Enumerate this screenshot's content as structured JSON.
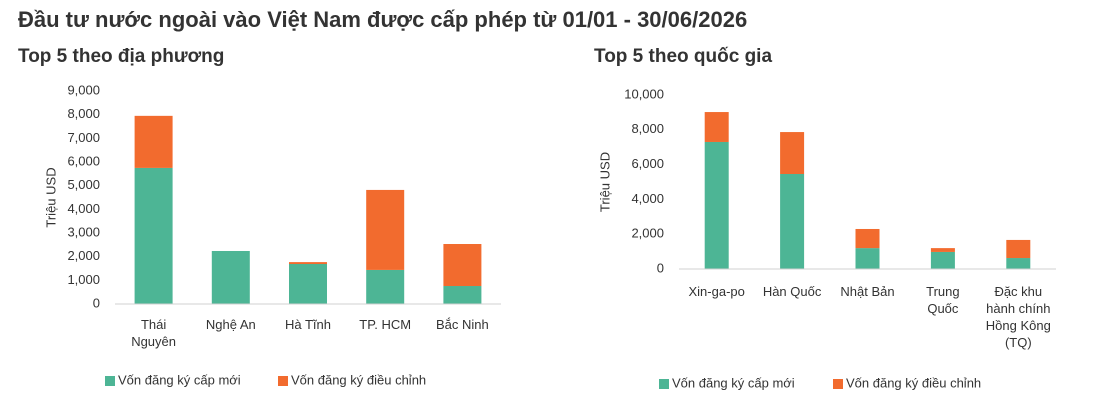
{
  "title": "Đầu tư nước ngoài vào Việt Nam được cấp phép từ 01/01 - 30/06/2026",
  "chart_data": [
    {
      "type": "bar",
      "stacked": true,
      "title": "Top 5 theo địa phương",
      "y_label": "Triệu USD",
      "categories": [
        "Thái Nguyên",
        "Nghệ An",
        "Hà Tĩnh",
        "TP. HCM",
        "Bắc Ninh"
      ],
      "series": [
        {
          "name": "Vốn đăng ký cấp mới",
          "color": "#4db595",
          "values": [
            5750,
            2240,
            1690,
            1440,
            760
          ]
        },
        {
          "name": "Vốn đăng ký điều chỉnh",
          "color": "#f26b2e",
          "values": [
            2200,
            0,
            80,
            3380,
            1775
          ]
        }
      ],
      "ylim": [
        0,
        9000
      ],
      "yticks": [
        0,
        {
          "value": 1000,
          "label": "1,000"
        },
        {
          "value": 2000,
          "label": "2,000"
        },
        {
          "value": 3000,
          "label": "3,000"
        },
        {
          "value": 4000,
          "label": "4,000"
        },
        {
          "value": 5000,
          "label": "5,000"
        },
        {
          "value": 6000,
          "label": "6,000"
        },
        {
          "value": 7000,
          "label": "7,000"
        },
        {
          "value": 8000,
          "label": "8,000"
        },
        {
          "value": 9000,
          "label": "9,000"
        }
      ],
      "grid": false,
      "legend": "bottom"
    },
    {
      "type": "bar",
      "stacked": true,
      "title": "Top 5 theo quốc gia",
      "y_label": "Triệu USD",
      "categories": [
        "Xin-ga-po",
        "Hàn Quốc",
        "Nhật Bản",
        "Trung Quốc",
        "Đặc khu hành chính Hồng Kông (TQ)"
      ],
      "series": [
        {
          "name": "Vốn đăng ký cấp mới",
          "color": "#4db595",
          "values": [
            7300,
            5460,
            1200,
            980,
            630
          ]
        },
        {
          "name": "Vốn đăng ký điều chỉnh",
          "color": "#f26b2e",
          "values": [
            1720,
            2410,
            1100,
            220,
            1040
          ]
        }
      ],
      "ylim": [
        0,
        10000
      ],
      "yticks": [
        0,
        {
          "value": 2000,
          "label": "2,000"
        },
        {
          "value": 4000,
          "label": "4,000"
        },
        {
          "value": 6000,
          "label": "6,000"
        },
        {
          "value": 8000,
          "label": "8,000"
        },
        {
          "value": 10000,
          "label": "10,000"
        }
      ],
      "grid": false,
      "legend": "bottom"
    }
  ]
}
